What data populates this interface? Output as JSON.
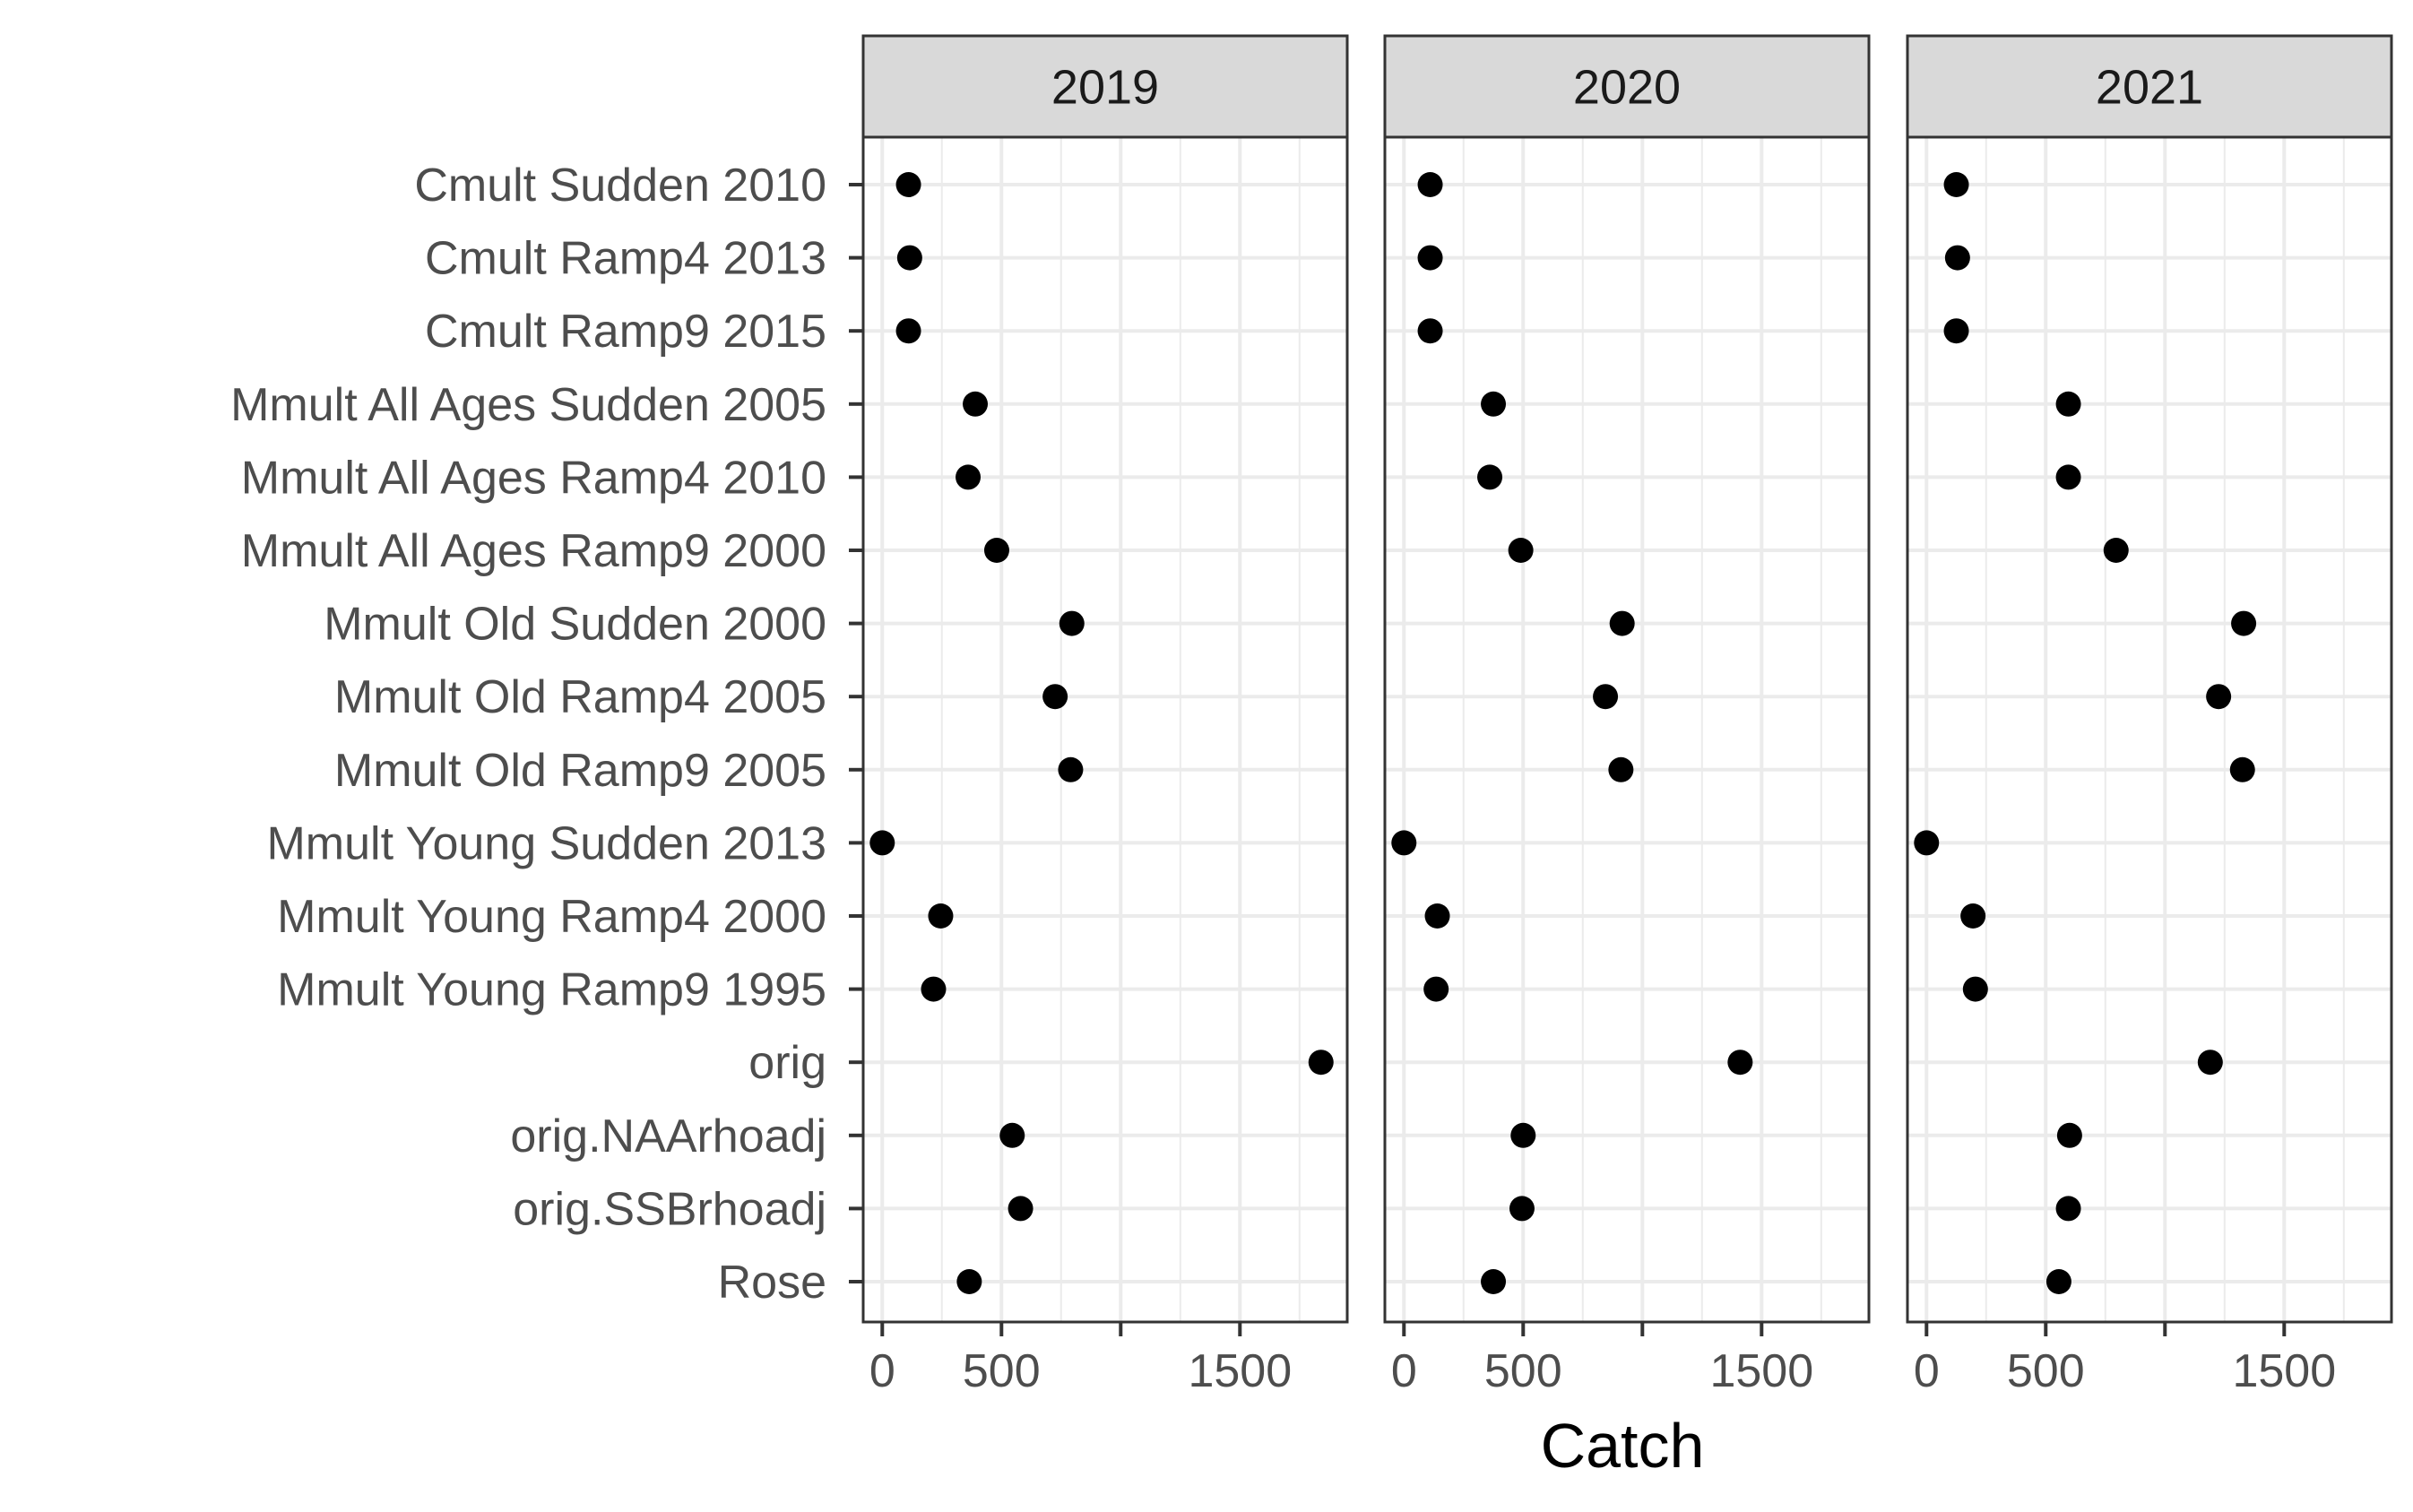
{
  "chart_data": {
    "type": "scatter",
    "xlabel": "Catch",
    "ylabel": "",
    "xlim": [
      -80,
      1950
    ],
    "x_ticks": [
      0,
      500,
      1000,
      1500
    ],
    "x_tick_labels": [
      "0",
      "500",
      "",
      "1500"
    ],
    "grid": true,
    "categories": [
      "Cmult Sudden 2010",
      "Cmult Ramp4 2013",
      "Cmult Ramp9 2015",
      "Mmult All Ages Sudden 2005",
      "Mmult All Ages Ramp4 2010",
      "Mmult All Ages Ramp9 2000",
      "Mmult Old Sudden 2000",
      "Mmult Old Ramp4 2005",
      "Mmult Old Ramp9 2005",
      "Mmult Young Sudden 2013",
      "Mmult Young Ramp4 2000",
      "Mmult Young Ramp9 1995",
      "orig",
      "orig.NAArhoadj",
      "orig.SSBrhoadj",
      "Rose"
    ],
    "panels": [
      {
        "name": "2019",
        "values": [
          110,
          115,
          110,
          390,
          360,
          480,
          795,
          725,
          790,
          0,
          245,
          215,
          1840,
          545,
          580,
          365
        ]
      },
      {
        "name": "2020",
        "values": [
          110,
          110,
          110,
          375,
          360,
          490,
          915,
          845,
          910,
          0,
          140,
          135,
          1410,
          500,
          495,
          375
        ]
      },
      {
        "name": "2021",
        "values": [
          125,
          130,
          125,
          595,
          595,
          795,
          1330,
          1225,
          1325,
          0,
          195,
          205,
          1190,
          600,
          595,
          555
        ]
      }
    ],
    "marker_color": "#000000",
    "panel_border_color": "#333333",
    "strip_fill": "#d9d9d9",
    "grid_color": "#ebebeb"
  }
}
